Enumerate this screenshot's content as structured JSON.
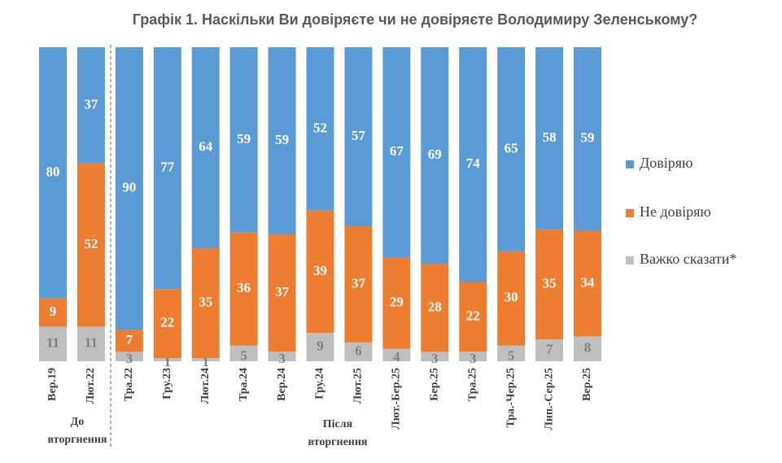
{
  "chart_data": {
    "type": "stacked_bar",
    "title": "Графік 1. Наскільки Ви довіряєте чи не довіряєте Володимиру Зеленському?",
    "categories": [
      "Вер.19",
      "Лют.22",
      "Тра.22",
      "Гру.23",
      "Лют.24",
      "Тра.24",
      "Вер.24",
      "Гру.24",
      "Лют.25",
      "Лют.-Бер.25",
      "Бер.25",
      "Тра.25",
      "Тра.-Чер.25",
      "Лип.-Сер.25",
      "Вер.25"
    ],
    "series": [
      {
        "name": "Довіряю",
        "color": "#5b9bd5",
        "values": [
          80,
          37,
          90,
          77,
          64,
          59,
          59,
          52,
          57,
          67,
          69,
          74,
          65,
          58,
          59
        ]
      },
      {
        "name": "Не довіряю",
        "color": "#ed7d31",
        "values": [
          9,
          52,
          7,
          22,
          35,
          36,
          37,
          39,
          37,
          29,
          28,
          22,
          30,
          35,
          34
        ]
      },
      {
        "name": "Важко сказати*",
        "color": "#bfbfbf",
        "values": [
          11,
          11,
          3,
          1,
          1,
          5,
          3,
          9,
          6,
          4,
          3,
          3,
          5,
          7,
          8
        ]
      }
    ],
    "annotations": [
      "До вторгнення",
      "Після вторгнення"
    ],
    "legend": "right"
  }
}
